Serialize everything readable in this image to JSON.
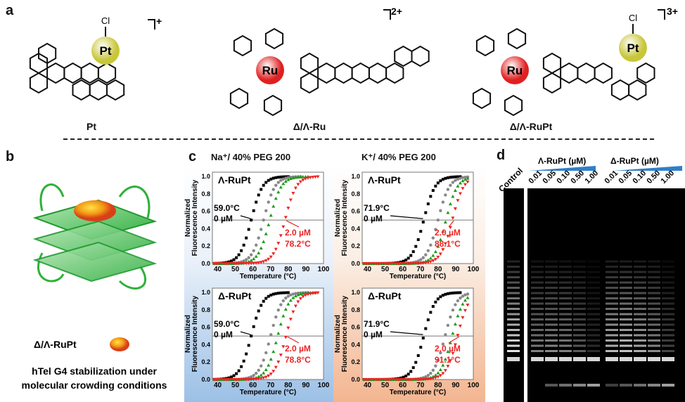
{
  "panels": {
    "a": "a",
    "b": "b",
    "c": "c",
    "d": "d"
  },
  "compounds": [
    {
      "name": "Pt",
      "charge": "+",
      "metals": [
        "Pt"
      ],
      "ligand": "Cl"
    },
    {
      "name": "Δ/Λ-Ru",
      "charge": "2+",
      "metals": [
        "Ru"
      ]
    },
    {
      "name": "Δ/Λ-RuPt",
      "charge": "3+",
      "metals": [
        "Ru",
        "Pt"
      ],
      "ligand": "Cl"
    }
  ],
  "panel_b": {
    "compound_label": "Δ/Λ-RuPt",
    "caption_line1": "hTel G4 stabilization under",
    "caption_line2": "molecular crowding conditions"
  },
  "panel_c": {
    "col_titles": [
      "Na⁺/ 40% PEG 200",
      "K⁺/ 40% PEG 200"
    ],
    "bg_colors": [
      "#9cc0e6",
      "#f3b590"
    ]
  },
  "chart_data": [
    {
      "type": "scatter",
      "title": "Λ-RuPt",
      "condition": "Na⁺/ 40% PEG 200",
      "xlabel": "Temperature (°C)",
      "ylabel_line1": "Normalized",
      "ylabel_line2": "Fluorescence Intensity",
      "xlim": [
        37,
        100
      ],
      "ylim": [
        0,
        1.05
      ],
      "xticks": [
        40,
        50,
        60,
        70,
        80,
        90,
        100
      ],
      "yticks": [
        0.0,
        0.2,
        0.4,
        0.6,
        0.8,
        1.0
      ],
      "reference_line": 0.5,
      "annotations": {
        "low_tm": "59.0°C",
        "low_conc": "0 µM",
        "high_conc": "2.0 µM",
        "high_tm": "78.2°C"
      },
      "series": [
        {
          "color": "#000000",
          "marker": "square",
          "tm": 59.0
        },
        {
          "color": "#888888",
          "marker": "circle",
          "tm": 66
        },
        {
          "color": "#1a9a1a",
          "marker": "triangle-up",
          "tm": 69.5
        },
        {
          "color": "#ee2222",
          "marker": "triangle-down",
          "tm": 78.2
        }
      ]
    },
    {
      "type": "scatter",
      "title": "Λ-RuPt",
      "condition": "K⁺/ 40% PEG 200",
      "xlabel": "Temperature (°C)",
      "ylabel_line1": "Normalized",
      "ylabel_line2": "Fluorescence Intensity",
      "xlim": [
        37,
        100
      ],
      "ylim": [
        0,
        1.05
      ],
      "xticks": [
        40,
        50,
        60,
        70,
        80,
        90,
        100
      ],
      "yticks": [
        0.0,
        0.2,
        0.4,
        0.6,
        0.8,
        1.0
      ],
      "reference_line": 0.5,
      "annotations": {
        "low_tm": "71.9°C",
        "low_conc": "0 µM",
        "high_conc": "2.0 µM",
        "high_tm": "88.1°C"
      },
      "series": [
        {
          "color": "#000000",
          "marker": "square",
          "tm": 71.9
        },
        {
          "color": "#888888",
          "marker": "circle",
          "tm": 80
        },
        {
          "color": "#1a9a1a",
          "marker": "triangle-up",
          "tm": 84.5
        },
        {
          "color": "#ee2222",
          "marker": "triangle-down",
          "tm": 88.1
        }
      ]
    },
    {
      "type": "scatter",
      "title": "Δ-RuPt",
      "condition": "Na⁺/ 40% PEG 200",
      "xlabel": "Temperature (°C)",
      "ylabel_line1": "Normalized",
      "ylabel_line2": "Fluorescence Intensity",
      "xlim": [
        37,
        100
      ],
      "ylim": [
        0,
        1.05
      ],
      "xticks": [
        40,
        50,
        60,
        70,
        80,
        90,
        100
      ],
      "yticks": [
        0.0,
        0.2,
        0.4,
        0.6,
        0.8,
        1.0
      ],
      "reference_line": 0.5,
      "annotations": {
        "low_tm": "59.0°C",
        "low_conc": "0 µM",
        "high_conc": "2.0 µM",
        "high_tm": "78.8°C"
      },
      "series": [
        {
          "color": "#000000",
          "marker": "square",
          "tm": 59.0
        },
        {
          "color": "#888888",
          "marker": "circle",
          "tm": 70
        },
        {
          "color": "#1a9a1a",
          "marker": "triangle-up",
          "tm": 74
        },
        {
          "color": "#ee2222",
          "marker": "triangle-down",
          "tm": 78.8
        }
      ]
    },
    {
      "type": "scatter",
      "title": "Δ-RuPt",
      "condition": "K⁺/ 40% PEG 200",
      "xlabel": "Temperature (°C)",
      "ylabel_line1": "Normalized",
      "ylabel_line2": "Fluorescence Intensity",
      "xlim": [
        37,
        100
      ],
      "ylim": [
        0,
        1.05
      ],
      "xticks": [
        40,
        50,
        60,
        70,
        80,
        90,
        100
      ],
      "yticks": [
        0.0,
        0.2,
        0.4,
        0.6,
        0.8,
        1.0
      ],
      "reference_line": 0.5,
      "annotations": {
        "low_tm": "71.9°C",
        "low_conc": "0 µM",
        "high_conc": "2.0 µM",
        "high_tm": "91.1°C"
      },
      "series": [
        {
          "color": "#000000",
          "marker": "square",
          "tm": 71.9
        },
        {
          "color": "#888888",
          "marker": "circle",
          "tm": 84
        },
        {
          "color": "#1a9a1a",
          "marker": "triangle-up",
          "tm": 88
        },
        {
          "color": "#ee2222",
          "marker": "triangle-down",
          "tm": 91.1
        }
      ]
    }
  ],
  "panel_d": {
    "control": "Control",
    "groups": [
      {
        "label": "Λ-RuPt (µM)",
        "concs": [
          "0.01",
          "0.05",
          "0.10",
          "0.50",
          "1.00"
        ]
      },
      {
        "label": "Δ-RuPt (µM)",
        "concs": [
          "0.01",
          "0.05",
          "0.10",
          "0.50",
          "1.00"
        ]
      }
    ],
    "wedge_color": "#2f7fc8"
  }
}
